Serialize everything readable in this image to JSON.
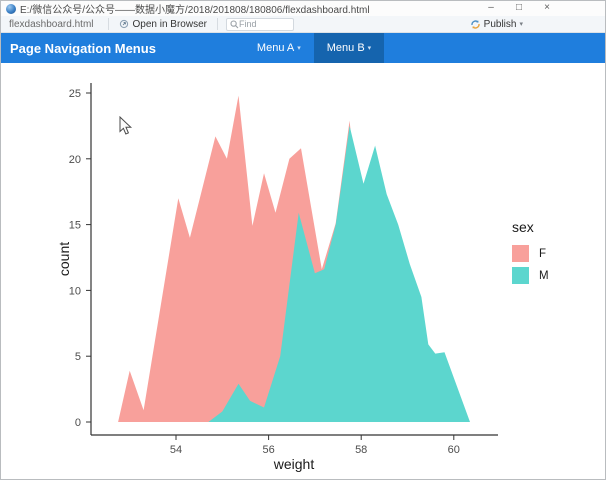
{
  "window": {
    "title": "E:/微信公众号/公众号——数据小魔方/2018/201808/180806/flexdashboard.html"
  },
  "icons": {
    "minimize": "–",
    "maximize": "□",
    "close": "×",
    "caret_down": "▾"
  },
  "toolbar": {
    "tab_label": "flexdashboard.html",
    "open_in_browser_label": "Open in Browser",
    "find_placeholder": "Find",
    "publish_label": "Publish"
  },
  "navbar": {
    "title": "Page Navigation Menus",
    "menu_a": "Menu A",
    "menu_b": "Menu B"
  },
  "chart_data": {
    "type": "area",
    "title": "",
    "xlabel": "weight",
    "ylabel": "count",
    "x_ticks": [
      54,
      56,
      58,
      60
    ],
    "y_ticks": [
      0,
      5,
      10,
      15,
      20,
      25
    ],
    "xlim": [
      52.2,
      60.9
    ],
    "ylim": [
      0,
      25.5
    ],
    "grid": false,
    "legend": {
      "title": "sex",
      "position": "right"
    },
    "series": [
      {
        "name": "F",
        "color": "#f8a09b",
        "points": [
          [
            52.75,
            0
          ],
          [
            53.0,
            3.9
          ],
          [
            53.3,
            0.9
          ],
          [
            54.05,
            17
          ],
          [
            54.3,
            14
          ],
          [
            54.85,
            21.7
          ],
          [
            55.1,
            20
          ],
          [
            55.35,
            24.8
          ],
          [
            55.65,
            14.9
          ],
          [
            55.9,
            18.9
          ],
          [
            56.15,
            15.9
          ],
          [
            56.45,
            20
          ],
          [
            56.7,
            20.8
          ],
          [
            57.15,
            11.6
          ],
          [
            57.45,
            15.1
          ],
          [
            57.75,
            22.9
          ],
          [
            58.05,
            12
          ],
          [
            58.3,
            3
          ],
          [
            58.45,
            0
          ]
        ]
      },
      {
        "name": "M",
        "color": "#5cd6ce",
        "points": [
          [
            54.7,
            0
          ],
          [
            55.0,
            0.8
          ],
          [
            55.35,
            2.9
          ],
          [
            55.6,
            1.6
          ],
          [
            55.9,
            1.1
          ],
          [
            56.25,
            5
          ],
          [
            56.65,
            15.9
          ],
          [
            57.0,
            11.3
          ],
          [
            57.2,
            11.6
          ],
          [
            57.45,
            15
          ],
          [
            57.55,
            17.5
          ],
          [
            57.75,
            22.5
          ],
          [
            58.05,
            18.1
          ],
          [
            58.3,
            21
          ],
          [
            58.55,
            17.3
          ],
          [
            58.8,
            15
          ],
          [
            59.05,
            12
          ],
          [
            59.3,
            9.5
          ],
          [
            59.45,
            5.9
          ],
          [
            59.6,
            5.2
          ],
          [
            59.8,
            5.3
          ],
          [
            60.35,
            0
          ]
        ]
      }
    ]
  }
}
